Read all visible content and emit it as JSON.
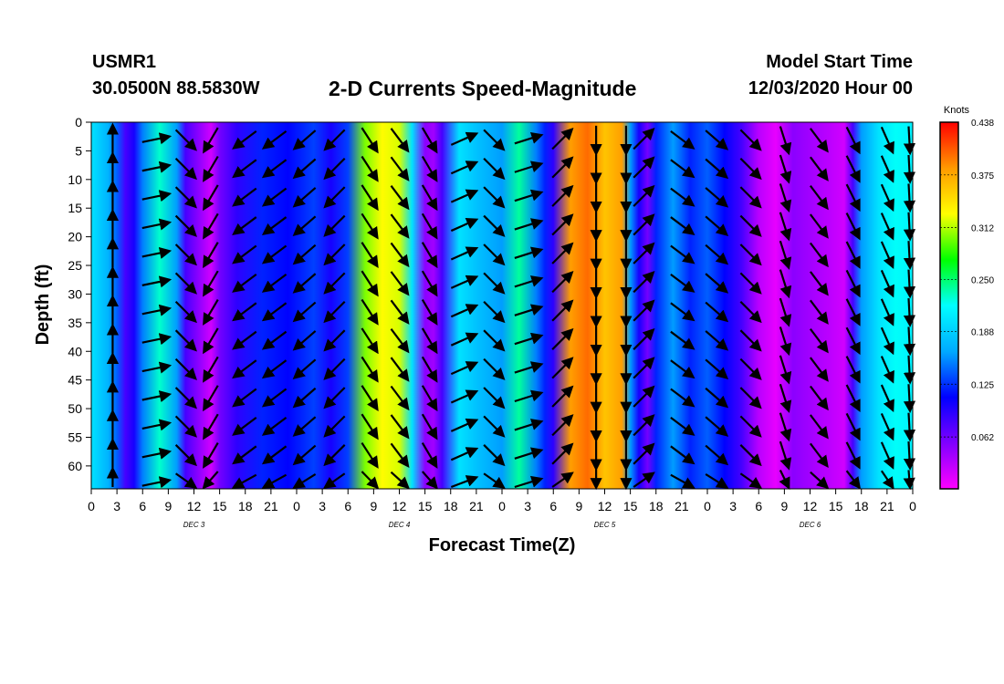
{
  "header": {
    "station": "USMR1",
    "coordinates": "30.0500N 88.5830W",
    "title": "2-D Currents Speed-Magnitude",
    "model_start_label": "Model Start Time",
    "model_start_datetime": "12/03/2020 Hour 00"
  },
  "chart_data": {
    "type": "heatmap",
    "title": "2-D Currents Speed-Magnitude",
    "xlabel": "Forecast Time(Z)",
    "ylabel": "Depth (ft)",
    "x_tick_labels": [
      "0",
      "3",
      "6",
      "9",
      "12",
      "15",
      "18",
      "21",
      "0",
      "3",
      "6",
      "9",
      "12",
      "15",
      "18",
      "21",
      "0",
      "3",
      "6",
      "9",
      "12",
      "15",
      "18",
      "21",
      "0",
      "3",
      "6",
      "9",
      "12",
      "15",
      "18",
      "21",
      "0"
    ],
    "x_hours": [
      0,
      3,
      6,
      9,
      12,
      15,
      18,
      21,
      24,
      27,
      30,
      33,
      36,
      39,
      42,
      45,
      48,
      51,
      54,
      57,
      60,
      63,
      66,
      69,
      72,
      75,
      78,
      81,
      84,
      87,
      90,
      93,
      96
    ],
    "xlim_hours": [
      0,
      96
    ],
    "day_labels": [
      {
        "label": "DEC  3",
        "hour": 12
      },
      {
        "label": "DEC  4",
        "hour": 36
      },
      {
        "label": "DEC  5",
        "hour": 60
      },
      {
        "label": "DEC  6",
        "hour": 84
      }
    ],
    "y_ticks": [
      0,
      5,
      10,
      15,
      20,
      25,
      30,
      35,
      40,
      45,
      50,
      55,
      60
    ],
    "ylim": [
      0,
      64
    ],
    "y_inverted": true,
    "colorbar": {
      "unit": "Knots",
      "min": 0.0,
      "max": 0.438,
      "tick_labels": [
        "0.438",
        "0.375",
        "0.312",
        "0.250",
        "0.188",
        "0.125",
        "0.062"
      ],
      "tick_values": [
        0.438,
        0.375,
        0.312,
        0.25,
        0.188,
        0.125,
        0.062
      ],
      "colors": [
        "#ff00ff",
        "#8000ff",
        "#0000ff",
        "#00aaff",
        "#00ffff",
        "#00ff00",
        "#ffff00",
        "#ff9900",
        "#ff0000"
      ]
    },
    "speed_profile_knots": [
      {
        "hour": 0,
        "v": 0.2
      },
      {
        "hour": 2,
        "v": 0.17
      },
      {
        "hour": 3,
        "v": 0.14
      },
      {
        "hour": 4,
        "v": 0.08
      },
      {
        "hour": 5,
        "v": 0.1
      },
      {
        "hour": 6,
        "v": 0.15
      },
      {
        "hour": 8,
        "v": 0.23
      },
      {
        "hour": 10,
        "v": 0.16
      },
      {
        "hour": 11,
        "v": 0.08
      },
      {
        "hour": 12.5,
        "v": 0.05
      },
      {
        "hour": 14,
        "v": 0.02
      },
      {
        "hour": 15,
        "v": 0.06
      },
      {
        "hour": 17,
        "v": 0.09
      },
      {
        "hour": 20,
        "v": 0.12
      },
      {
        "hour": 23,
        "v": 0.11
      },
      {
        "hour": 26,
        "v": 0.13
      },
      {
        "hour": 28,
        "v": 0.1
      },
      {
        "hour": 30,
        "v": 0.13
      },
      {
        "hour": 32,
        "v": 0.3
      },
      {
        "hour": 34,
        "v": 0.33
      },
      {
        "hour": 36,
        "v": 0.32
      },
      {
        "hour": 37.5,
        "v": 0.2
      },
      {
        "hour": 39,
        "v": 0.05
      },
      {
        "hour": 40,
        "v": 0.04
      },
      {
        "hour": 41,
        "v": 0.08
      },
      {
        "hour": 43,
        "v": 0.2
      },
      {
        "hour": 45,
        "v": 0.18
      },
      {
        "hour": 48,
        "v": 0.16
      },
      {
        "hour": 50,
        "v": 0.24
      },
      {
        "hour": 52,
        "v": 0.15
      },
      {
        "hour": 53,
        "v": 0.12
      },
      {
        "hour": 54,
        "v": 0.09
      },
      {
        "hour": 56,
        "v": 0.38
      },
      {
        "hour": 58,
        "v": 0.4
      },
      {
        "hour": 60,
        "v": 0.36
      },
      {
        "hour": 62,
        "v": 0.38
      },
      {
        "hour": 63,
        "v": 0.16
      },
      {
        "hour": 64,
        "v": 0.1
      },
      {
        "hour": 65,
        "v": 0.06
      },
      {
        "hour": 66,
        "v": 0.12
      },
      {
        "hour": 68,
        "v": 0.16
      },
      {
        "hour": 70,
        "v": 0.12
      },
      {
        "hour": 72,
        "v": 0.14
      },
      {
        "hour": 74,
        "v": 0.11
      },
      {
        "hour": 76,
        "v": 0.08
      },
      {
        "hour": 78,
        "v": 0.03
      },
      {
        "hour": 80,
        "v": 0.01
      },
      {
        "hour": 82,
        "v": 0.05
      },
      {
        "hour": 84,
        "v": 0.04
      },
      {
        "hour": 86,
        "v": 0.03
      },
      {
        "hour": 88,
        "v": 0.02
      },
      {
        "hour": 89,
        "v": 0.08
      },
      {
        "hour": 90,
        "v": 0.16
      },
      {
        "hour": 92,
        "v": 0.2
      },
      {
        "hour": 94,
        "v": 0.22
      },
      {
        "hour": 96,
        "v": 0.21
      }
    ],
    "arrow_columns": [
      {
        "hour": 2.5,
        "dir": [
          0,
          1
        ]
      },
      {
        "hour": 7.5,
        "dir": [
          0.97,
          0.2
        ]
      },
      {
        "hour": 11,
        "dir": [
          0.7,
          -0.7
        ]
      },
      {
        "hour": 14,
        "dir": [
          -0.5,
          -0.85
        ]
      },
      {
        "hour": 18,
        "dir": [
          -0.8,
          -0.6
        ]
      },
      {
        "hour": 21.5,
        "dir": [
          -0.8,
          -0.6
        ]
      },
      {
        "hour": 25,
        "dir": [
          -0.75,
          -0.65
        ]
      },
      {
        "hour": 28.5,
        "dir": [
          -0.7,
          -0.7
        ]
      },
      {
        "hour": 32.5,
        "dir": [
          0.55,
          -0.85
        ]
      },
      {
        "hour": 36,
        "dir": [
          0.6,
          -0.8
        ]
      },
      {
        "hour": 39.5,
        "dir": [
          0.5,
          -0.85
        ]
      },
      {
        "hour": 43.5,
        "dir": [
          0.9,
          0.4
        ]
      },
      {
        "hour": 47,
        "dir": [
          0.7,
          -0.7
        ]
      },
      {
        "hour": 51,
        "dir": [
          0.95,
          0.3
        ]
      },
      {
        "hour": 55,
        "dir": [
          0.7,
          0.7
        ]
      },
      {
        "hour": 59,
        "dir": [
          0,
          -1
        ]
      },
      {
        "hour": 62.5,
        "dir": [
          0,
          -1
        ]
      },
      {
        "hour": 64.5,
        "dir": [
          0.7,
          0.7
        ]
      },
      {
        "hour": 69,
        "dir": [
          0.8,
          -0.6
        ]
      },
      {
        "hour": 73,
        "dir": [
          0.75,
          -0.65
        ]
      },
      {
        "hour": 77,
        "dir": [
          0.7,
          -0.7
        ]
      },
      {
        "hour": 81,
        "dir": [
          0.3,
          -0.95
        ]
      },
      {
        "hour": 85,
        "dir": [
          0.6,
          -0.8
        ]
      },
      {
        "hour": 89,
        "dir": [
          0.45,
          -0.9
        ]
      },
      {
        "hour": 93,
        "dir": [
          0.4,
          -0.9
        ]
      },
      {
        "hour": 96,
        "dir": [
          0.3,
          -0.95
        ]
      }
    ],
    "arrow_depths_ft": [
      3,
      8,
      13,
      18,
      23,
      28,
      33,
      38,
      43,
      48,
      53,
      58,
      63
    ]
  }
}
